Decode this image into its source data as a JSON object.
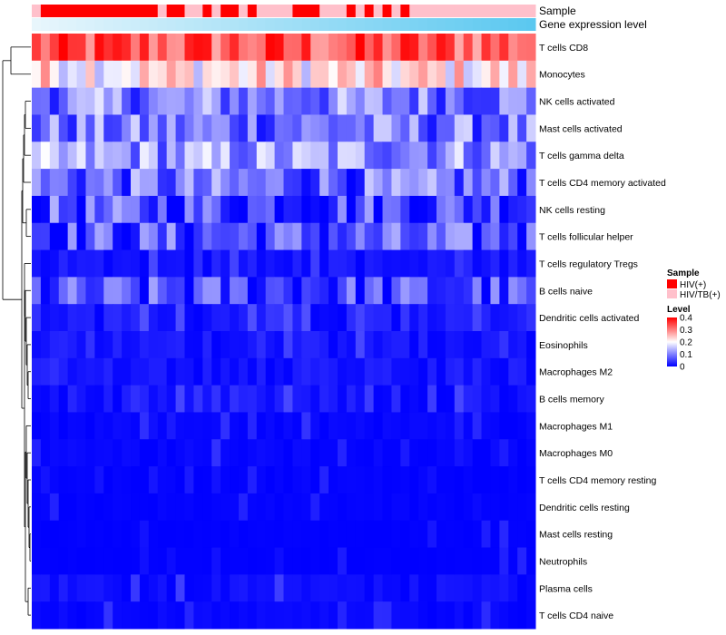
{
  "chart_data": {
    "type": "heatmap",
    "title": "",
    "annotations": {
      "sample_label": "Sample",
      "gene_label": "Gene expression level",
      "sample_groups": [
        "HIV(+)",
        "HIV/TB(+)"
      ],
      "sample_colors": {
        "HIV(+)": "#ff0000",
        "HIV/TB(+)": "#ffc0cb"
      },
      "gene_gradient": [
        "#e8f6fc",
        "#5bc8f0"
      ],
      "columns": [
        "HIV/TB(+)",
        "HIV(+)",
        "HIV(+)",
        "HIV(+)",
        "HIV(+)",
        "HIV(+)",
        "HIV(+)",
        "HIV(+)",
        "HIV(+)",
        "HIV(+)",
        "HIV(+)",
        "HIV(+)",
        "HIV(+)",
        "HIV(+)",
        "HIV/TB(+)",
        "HIV(+)",
        "HIV(+)",
        "HIV/TB(+)",
        "HIV/TB(+)",
        "HIV(+)",
        "HIV/TB(+)",
        "HIV(+)",
        "HIV(+)",
        "HIV/TB(+)",
        "HIV(+)",
        "HIV/TB(+)",
        "HIV/TB(+)",
        "HIV/TB(+)",
        "HIV/TB(+)",
        "HIV(+)",
        "HIV(+)",
        "HIV(+)",
        "HIV/TB(+)",
        "HIV/TB(+)",
        "HIV/TB(+)",
        "HIV(+)",
        "HIV/TB(+)",
        "HIV(+)",
        "HIV/TB(+)",
        "HIV(+)",
        "HIV/TB(+)",
        "HIV(+)",
        "HIV/TB(+)",
        "HIV/TB(+)",
        "HIV/TB(+)",
        "HIV/TB(+)",
        "HIV/TB(+)",
        "HIV/TB(+)",
        "HIV/TB(+)",
        "HIV/TB(+)",
        "HIV/TB(+)",
        "HIV/TB(+)",
        "HIV/TB(+)",
        "HIV/TB(+)",
        "HIV/TB(+)",
        "HIV/TB(+)"
      ]
    },
    "rows": [
      "T cells CD8",
      "Monocytes",
      "NK cells activated",
      "Mast cells activated",
      "T cells gamma delta",
      "T cells CD4 memory activated",
      "NK cells resting",
      "T cells follicular helper",
      "T cells regulatory  Tregs",
      "B cells naive",
      "Dendritic cells activated",
      "Eosinophils",
      "Macrophages M2",
      "B cells memory",
      "Macrophages M1",
      "Macrophages M0",
      "T cells CD4 memory resting",
      "Dendritic cells resting",
      "Mast cells resting",
      "Neutrophils",
      "Plasma cells",
      "T cells CD4 naive"
    ],
    "row_base_values": [
      0.33,
      0.22,
      0.1,
      0.09,
      0.12,
      0.08,
      0.06,
      0.06,
      0.03,
      0.05,
      0.04,
      0.03,
      0.03,
      0.03,
      0.01,
      0.01,
      0.005,
      0.005,
      0.003,
      0.002,
      0.02,
      0.01
    ],
    "n_columns": 56,
    "color_scale": {
      "domain": [
        0,
        0.2,
        0.4
      ],
      "colors": [
        "#0000ff",
        "#ffffff",
        "#ff0000"
      ]
    },
    "legend": {
      "sample_title": "Sample",
      "level_title": "Level",
      "level_ticks": [
        "0.4",
        "0.3",
        "0.2",
        "0.1",
        "0"
      ],
      "level_tick_values": [
        0.4,
        0.3,
        0.2,
        0.1,
        0
      ],
      "position": "right"
    }
  }
}
